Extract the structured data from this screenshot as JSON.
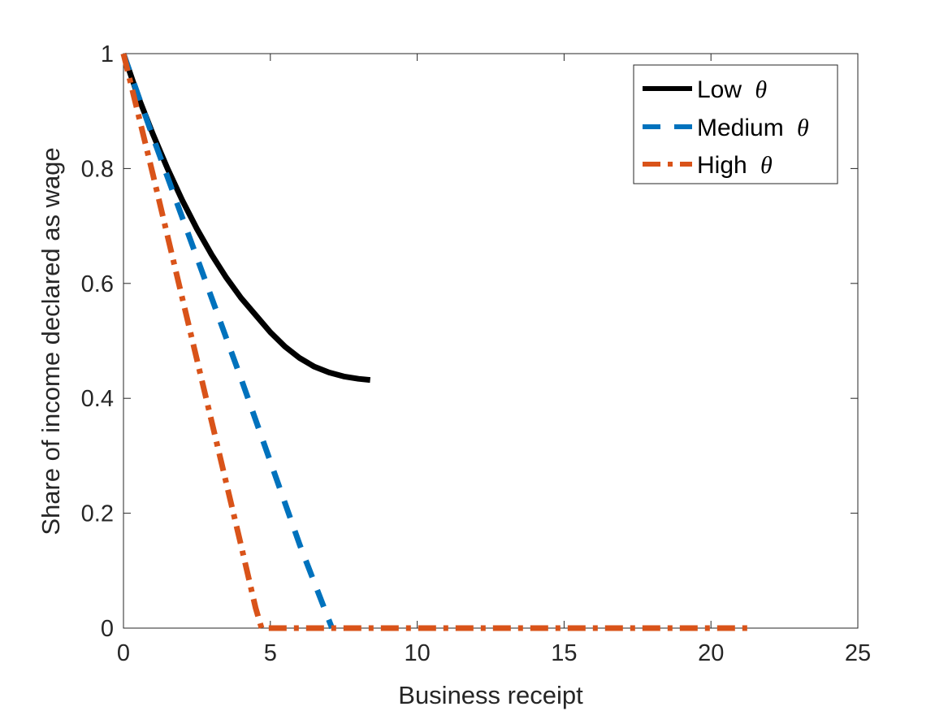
{
  "chart_data": {
    "type": "line",
    "title": "",
    "xlabel": "Business receipt",
    "ylabel": "Share of income declared as wage",
    "xlim": [
      0,
      25
    ],
    "ylim": [
      0,
      1
    ],
    "x_ticks": [
      0,
      5,
      10,
      15,
      20,
      25
    ],
    "y_ticks": [
      0,
      0.2,
      0.4,
      0.6,
      0.8,
      1
    ],
    "x_tick_labels": [
      "0",
      "5",
      "10",
      "15",
      "20",
      "25"
    ],
    "y_tick_labels": [
      "0",
      "0.2",
      "0.4",
      "0.6",
      "0.8",
      "1"
    ],
    "grid": false,
    "legend_position": "top-right",
    "series": [
      {
        "name": "Low θ",
        "label": "Low",
        "symbol": "θ",
        "color": "#000000",
        "style": "solid",
        "x": [
          0,
          0.5,
          1,
          1.5,
          2,
          2.5,
          3,
          3.5,
          4,
          4.5,
          5,
          5.5,
          6,
          6.5,
          7,
          7.5,
          8,
          8.4
        ],
        "y": [
          1,
          0.925,
          0.86,
          0.8,
          0.745,
          0.695,
          0.65,
          0.61,
          0.575,
          0.545,
          0.515,
          0.49,
          0.47,
          0.455,
          0.445,
          0.438,
          0.434,
          0.432
        ]
      },
      {
        "name": "Medium θ",
        "label": "Medium",
        "symbol": "θ",
        "color": "#0072BD",
        "style": "dashed",
        "x": [
          0,
          1,
          2,
          3,
          4,
          5,
          6,
          7.1
        ],
        "y": [
          1,
          0.855,
          0.715,
          0.575,
          0.435,
          0.29,
          0.145,
          0
        ]
      },
      {
        "name": "High θ",
        "label": "High",
        "symbol": "θ",
        "color": "#D95319",
        "style": "dashdot",
        "x": [
          0,
          1,
          2,
          3,
          4,
          4.5,
          4.7,
          5,
          10,
          15,
          21.3
        ],
        "y": [
          1,
          0.79,
          0.575,
          0.36,
          0.145,
          0.035,
          0,
          0,
          0,
          0,
          0
        ]
      }
    ]
  }
}
